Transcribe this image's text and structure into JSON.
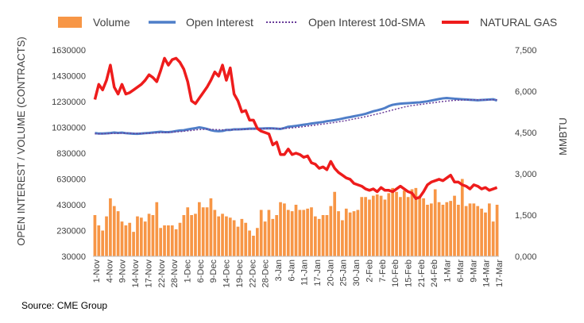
{
  "source": "Source: CME Group",
  "chart_data": {
    "type": "bar+line",
    "ylabel_left": "OPEN INTEREST / VOLUME (CONTRACTS)",
    "ylabel_right": "MMBTU",
    "y_left_ticks": [
      "30000",
      "230000",
      "430000",
      "630000",
      "830000",
      "1030000",
      "1230000",
      "1430000",
      "1630000"
    ],
    "y_right_ticks": [
      "0,000",
      "1,500",
      "3,000",
      "4,500",
      "6,000",
      "7,500"
    ],
    "ylim_left": [
      30000,
      1630000
    ],
    "ylim_right": [
      0,
      7500
    ],
    "x_tick_labels": [
      "1-Nov",
      "4-Nov",
      "9-Nov",
      "14-Nov",
      "17-Nov",
      "22-Nov",
      "28-Nov",
      "1-Dec",
      "6-Dec",
      "9-Dec",
      "14-Dec",
      "19-Dec",
      "22-Dec",
      "28-Dec",
      "3-Jan",
      "6-Jan",
      "11-Jan",
      "17-Jan",
      "20-Jan",
      "25-Jan",
      "30-Jan",
      "2-Feb",
      "7-Feb",
      "10-Feb",
      "15-Feb",
      "21-Feb",
      "24-Feb",
      "1-Mar",
      "6-Mar",
      "9-Mar",
      "14-Mar",
      "17-Mar"
    ],
    "legend": [
      {
        "name": "Volume",
        "color": "#f79646",
        "style": "bar"
      },
      {
        "name": "Open Interest",
        "color": "#4f7ec8",
        "style": "line"
      },
      {
        "name": "Open Interest 10d-SMA",
        "color": "#6a3d9a",
        "style": "dotted"
      },
      {
        "name": "NATURAL GAS",
        "color": "#ee1c1c",
        "style": "line"
      }
    ],
    "series": [
      {
        "name": "Volume",
        "axis": "left",
        "values": [
          350000,
          270000,
          230000,
          340000,
          480000,
          420000,
          380000,
          300000,
          270000,
          290000,
          220000,
          340000,
          330000,
          300000,
          360000,
          350000,
          450000,
          250000,
          270000,
          270000,
          270000,
          240000,
          290000,
          350000,
          410000,
          350000,
          360000,
          450000,
          410000,
          410000,
          480000,
          390000,
          340000,
          360000,
          340000,
          330000,
          310000,
          260000,
          320000,
          290000,
          230000,
          190000,
          250000,
          390000,
          300000,
          390000,
          320000,
          350000,
          450000,
          440000,
          390000,
          380000,
          430000,
          390000,
          390000,
          400000,
          410000,
          340000,
          320000,
          350000,
          350000,
          420000,
          530000,
          380000,
          310000,
          400000,
          370000,
          380000,
          390000,
          490000,
          490000,
          470000,
          500000,
          510000,
          500000,
          470000,
          520000,
          560000,
          530000,
          490000,
          540000,
          490000,
          550000,
          560000,
          500000,
          480000,
          430000,
          440000,
          550000,
          450000,
          430000,
          450000,
          460000,
          500000,
          430000,
          630000,
          420000,
          440000,
          440000,
          420000,
          400000,
          370000,
          440000,
          300000,
          430000
        ]
      },
      {
        "name": "Open Interest",
        "axis": "left",
        "values": [
          986000,
          982000,
          982000,
          984000,
          986000,
          990000,
          987000,
          989000,
          985000,
          983000,
          981000,
          980000,
          982000,
          985000,
          987000,
          990000,
          993000,
          996000,
          993000,
          993000,
          996000,
          1002000,
          1006000,
          1008000,
          1014000,
          1019000,
          1024000,
          1030000,
          1025000,
          1018000,
          1008000,
          1002000,
          1000000,
          1002000,
          1010000,
          1010000,
          1015000,
          1015000,
          1016000,
          1018000,
          1020000,
          1020000,
          1021000,
          1021000,
          1022000,
          1023000,
          1022000,
          1020000,
          1018000,
          1025000,
          1035000,
          1038000,
          1042000,
          1046000,
          1051000,
          1055000,
          1060000,
          1064000,
          1068000,
          1072000,
          1078000,
          1082000,
          1086000,
          1092000,
          1098000,
          1105000,
          1110000,
          1116000,
          1122000,
          1128000,
          1135000,
          1145000,
          1155000,
          1162000,
          1170000,
          1180000,
          1195000,
          1205000,
          1210000,
          1214000,
          1216000,
          1218000,
          1220000,
          1222000,
          1224000,
          1228000,
          1232000,
          1238000,
          1244000,
          1250000,
          1255000,
          1258000,
          1255000,
          1252000,
          1250000,
          1248000,
          1246000,
          1244000,
          1242000,
          1240000,
          1242000,
          1244000,
          1246000,
          1248000,
          1238000
        ]
      },
      {
        "name": "Open Interest 10d-SMA",
        "axis": "left",
        "values": [
          980000,
          980000,
          980000,
          981000,
          982000,
          983000,
          984000,
          985000,
          985000,
          985000,
          984000,
          983000,
          982000,
          983000,
          984000,
          985000,
          987000,
          989000,
          990000,
          991000,
          993000,
          995000,
          997000,
          1000000,
          1003000,
          1006000,
          1010000,
          1013000,
          1015000,
          1016000,
          1015000,
          1013000,
          1012000,
          1011000,
          1011000,
          1011000,
          1012000,
          1013000,
          1014000,
          1015000,
          1016000,
          1017000,
          1018000,
          1019000,
          1020000,
          1021000,
          1021000,
          1021000,
          1021000,
          1022000,
          1024000,
          1026000,
          1029000,
          1032000,
          1036000,
          1040000,
          1044000,
          1048000,
          1052000,
          1056000,
          1060000,
          1064000,
          1068000,
          1073000,
          1078000,
          1083000,
          1089000,
          1095000,
          1101000,
          1107000,
          1113000,
          1120000,
          1127000,
          1134000,
          1141000,
          1149000,
          1157000,
          1165000,
          1173000,
          1180000,
          1188000,
          1194000,
          1199000,
          1203000,
          1207000,
          1211000,
          1215000,
          1219000,
          1223000,
          1227000,
          1231000,
          1234000,
          1237000,
          1239000,
          1241000,
          1242000,
          1243000,
          1244000,
          1244000,
          1244000,
          1244000,
          1244000,
          1244000,
          1244000,
          1244000
        ]
      },
      {
        "name": "NATURAL GAS",
        "axis": "right",
        "values": [
          5700,
          6250,
          6050,
          6400,
          6950,
          6150,
          5900,
          6250,
          5900,
          5950,
          6050,
          6150,
          6250,
          6400,
          6600,
          6500,
          6350,
          6750,
          7200,
          6950,
          7150,
          7200,
          7050,
          6800,
          6350,
          5650,
          5550,
          5750,
          5950,
          6150,
          6400,
          6700,
          6550,
          6950,
          6400,
          6850,
          5900,
          5650,
          5250,
          5300,
          4950,
          4950,
          4650,
          4550,
          4500,
          4450,
          4050,
          4150,
          3700,
          3700,
          3900,
          3700,
          3750,
          3700,
          3600,
          3650,
          3400,
          3350,
          3200,
          3250,
          3150,
          3450,
          3200,
          3050,
          2950,
          2850,
          2800,
          2650,
          2600,
          2550,
          2450,
          2400,
          2450,
          2350,
          2500,
          2400,
          2400,
          2350,
          2450,
          2550,
          2450,
          2350,
          2300,
          2100,
          2150,
          2350,
          2600,
          2700,
          2750,
          2800,
          2750,
          2850,
          2950,
          2700,
          2700,
          2600,
          2550,
          2450,
          2600,
          2550,
          2450,
          2500,
          2400,
          2450,
          2500
        ]
      }
    ]
  }
}
